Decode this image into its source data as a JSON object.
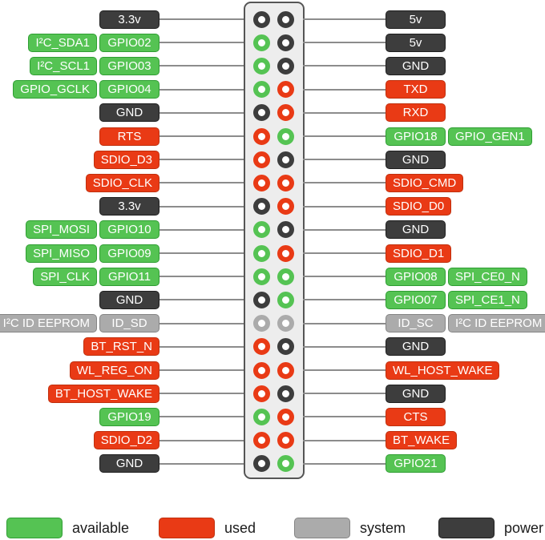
{
  "colors": {
    "available": {
      "fill": "#55C353",
      "border": "#2F9E33"
    },
    "used": {
      "fill": "#E93A15",
      "border": "#C0300E"
    },
    "system": {
      "fill": "#ABABAB",
      "border": "#858585"
    },
    "power": {
      "fill": "#3D3D3D",
      "border": "#1F1F1F"
    }
  },
  "rows": [
    {
      "left": {
        "label": "3.3v",
        "type": "power"
      },
      "right": {
        "label": "5v",
        "type": "power"
      }
    },
    {
      "left": {
        "label": "GPIO02",
        "type": "available",
        "alt": "I²C_SDA1"
      },
      "right": {
        "label": "5v",
        "type": "power"
      }
    },
    {
      "left": {
        "label": "GPIO03",
        "type": "available",
        "alt": "I²C_SCL1"
      },
      "right": {
        "label": "GND",
        "type": "power"
      }
    },
    {
      "left": {
        "label": "GPIO04",
        "type": "available",
        "alt": "GPIO_GCLK"
      },
      "right": {
        "label": "TXD",
        "type": "used"
      }
    },
    {
      "left": {
        "label": "GND",
        "type": "power"
      },
      "right": {
        "label": "RXD",
        "type": "used"
      }
    },
    {
      "left": {
        "label": "RTS",
        "type": "used"
      },
      "right": {
        "label": "GPIO18",
        "type": "available",
        "alt": "GPIO_GEN1"
      }
    },
    {
      "left": {
        "label": "SDIO_D3",
        "type": "used"
      },
      "right": {
        "label": "GND",
        "type": "power"
      }
    },
    {
      "left": {
        "label": "SDIO_CLK",
        "type": "used"
      },
      "right": {
        "label": "SDIO_CMD",
        "type": "used"
      }
    },
    {
      "left": {
        "label": "3.3v",
        "type": "power"
      },
      "right": {
        "label": "SDIO_D0",
        "type": "used"
      }
    },
    {
      "left": {
        "label": "GPIO10",
        "type": "available",
        "alt": "SPI_MOSI"
      },
      "right": {
        "label": "GND",
        "type": "power"
      }
    },
    {
      "left": {
        "label": "GPIO09",
        "type": "available",
        "alt": "SPI_MISO"
      },
      "right": {
        "label": "SDIO_D1",
        "type": "used"
      }
    },
    {
      "left": {
        "label": "GPIO11",
        "type": "available",
        "alt": "SPI_CLK"
      },
      "right": {
        "label": "GPIO08",
        "type": "available",
        "alt": "SPI_CE0_N"
      }
    },
    {
      "left": {
        "label": "GND",
        "type": "power"
      },
      "right": {
        "label": "GPIO07",
        "type": "available",
        "alt": "SPI_CE1_N"
      }
    },
    {
      "left": {
        "label": "ID_SD",
        "type": "system",
        "alt": "I²C ID EEPROM"
      },
      "right": {
        "label": "ID_SC",
        "type": "system",
        "alt": "I²C ID EEPROM"
      }
    },
    {
      "left": {
        "label": "BT_RST_N",
        "type": "used"
      },
      "right": {
        "label": "GND",
        "type": "power"
      }
    },
    {
      "left": {
        "label": "WL_REG_ON",
        "type": "used"
      },
      "right": {
        "label": "WL_HOST_WAKE",
        "type": "used"
      }
    },
    {
      "left": {
        "label": "BT_HOST_WAKE",
        "type": "used"
      },
      "right": {
        "label": "GND",
        "type": "power"
      }
    },
    {
      "left": {
        "label": "GPIO19",
        "type": "available"
      },
      "right": {
        "label": "CTS",
        "type": "used"
      }
    },
    {
      "left": {
        "label": "SDIO_D2",
        "type": "used"
      },
      "right": {
        "label": "BT_WAKE",
        "type": "used"
      }
    },
    {
      "left": {
        "label": "GND",
        "type": "power"
      },
      "right": {
        "label": "GPIO21",
        "type": "available"
      }
    }
  ],
  "legend": {
    "items": [
      {
        "label": "available",
        "type": "available"
      },
      {
        "label": "used",
        "type": "used"
      },
      {
        "label": "system",
        "type": "system"
      },
      {
        "label": "power",
        "type": "power"
      }
    ]
  }
}
